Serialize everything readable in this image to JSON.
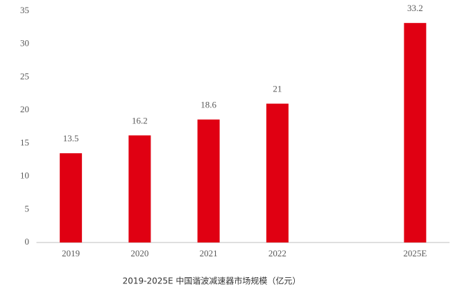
{
  "chart_data": {
    "type": "bar",
    "title": "2019-2025E 中国谐波减速器市场规模（亿元）",
    "categories": [
      "2019",
      "2020",
      "2021",
      "2022",
      null,
      "2025E"
    ],
    "values": [
      13.5,
      16.2,
      18.6,
      21,
      null,
      33.2
    ],
    "color": "#e00012",
    "ylim": [
      0,
      35
    ],
    "yticks": [
      0,
      5,
      10,
      15,
      20,
      25,
      30,
      35
    ],
    "grid": false
  }
}
